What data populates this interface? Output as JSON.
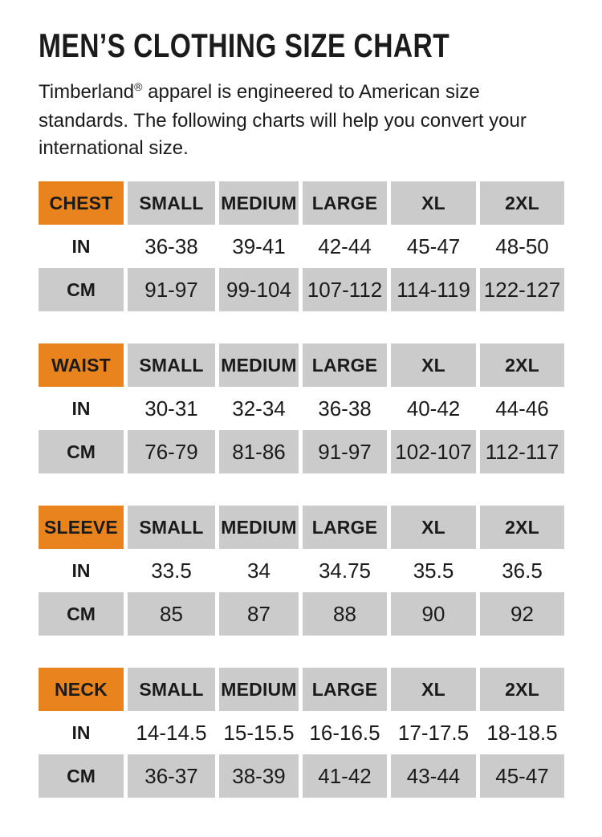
{
  "title": "MEN’S CLOTHING SIZE CHART",
  "intro": {
    "brand": "Timberland",
    "reg": "®",
    "rest": " apparel is engineered to American size standards. The following charts will help you convert your international size."
  },
  "colors": {
    "accent_orange": "#E8831D",
    "cell_gray": "#CBCBCB",
    "text_black": "#1B1B1B"
  },
  "size_headers": [
    "SMALL",
    "MEDIUM",
    "LARGE",
    "XL",
    "2XL"
  ],
  "unit_labels": {
    "inches": "IN",
    "centimeters": "CM"
  },
  "tables": [
    {
      "label": "CHEST",
      "in": [
        "36-38",
        "39-41",
        "42-44",
        "45-47",
        "48-50"
      ],
      "cm": [
        "91-97",
        "99-104",
        "107-112",
        "114-119",
        "122-127"
      ]
    },
    {
      "label": "WAIST",
      "in": [
        "30-31",
        "32-34",
        "36-38",
        "40-42",
        "44-46"
      ],
      "cm": [
        "76-79",
        "81-86",
        "91-97",
        "102-107",
        "112-117"
      ]
    },
    {
      "label": "SLEEVE",
      "in": [
        "33.5",
        "34",
        "34.75",
        "35.5",
        "36.5"
      ],
      "cm": [
        "85",
        "87",
        "88",
        "90",
        "92"
      ]
    },
    {
      "label": "NECK",
      "in": [
        "14-14.5",
        "15-15.5",
        "16-16.5",
        "17-17.5",
        "18-18.5"
      ],
      "cm": [
        "36-37",
        "38-39",
        "41-42",
        "43-44",
        "45-47"
      ]
    }
  ]
}
